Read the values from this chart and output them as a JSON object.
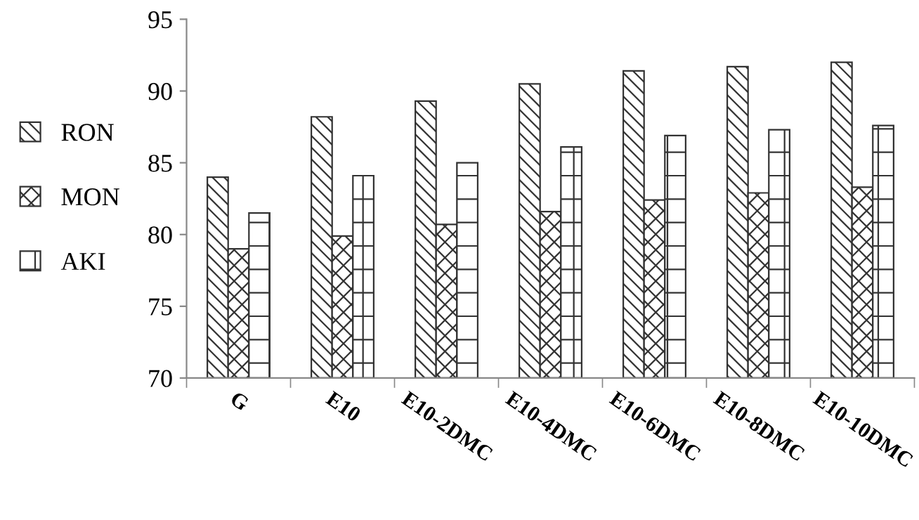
{
  "chart_data": {
    "type": "bar",
    "categories": [
      "G",
      "E10",
      "E10-2DMC",
      "E10-4DMC",
      "E10-6DMC",
      "E10-8DMC",
      "E10-10DMC"
    ],
    "series": [
      {
        "name": "RON",
        "color": "#333333",
        "values": [
          84.0,
          88.2,
          89.3,
          90.5,
          91.4,
          91.7,
          92.0
        ]
      },
      {
        "name": "MON",
        "color": "#333333",
        "values": [
          79.0,
          79.9,
          80.7,
          81.6,
          82.4,
          82.9,
          83.3
        ]
      },
      {
        "name": "AKI",
        "color": "#333333",
        "values": [
          81.5,
          84.1,
          85.0,
          86.1,
          86.9,
          87.3,
          87.6
        ]
      }
    ],
    "ylim": [
      70,
      95
    ],
    "yticks": [
      70,
      75,
      80,
      85,
      90,
      95
    ],
    "grid": false,
    "legend": "left"
  }
}
